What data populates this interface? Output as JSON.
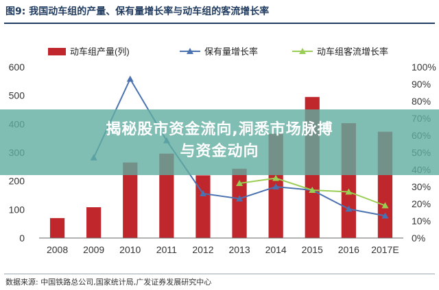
{
  "figure": {
    "title": "图9:  我国动车组的产量、保有量增长率与动车组的客流增长率",
    "source": "数据来源:  中国铁路总公司,国家统计局,广发证券发展研究中心"
  },
  "banner": {
    "line1": "揭秘股市资金流向,洞悉市场脉搏",
    "line2": "与资金动向"
  },
  "chart_data": {
    "type": "bar",
    "categories": [
      "2008",
      "2009",
      "2010",
      "2011",
      "2012",
      "2013",
      "2014",
      "2015",
      "2016",
      "2017E"
    ],
    "series": [
      {
        "name": "动车组产量(列)",
        "type": "bar",
        "axis": "left",
        "color": "#c0272d",
        "values": [
          70,
          108,
          265,
          296,
          220,
          243,
          366,
          495,
          403,
          373
        ]
      },
      {
        "name": "保有量增长率",
        "type": "line",
        "axis": "right",
        "color": "#4a72b0",
        "marker": "triangle",
        "values": [
          null,
          47,
          93,
          57,
          26,
          23,
          30,
          28,
          17,
          13
        ]
      },
      {
        "name": "动车组客流增长率",
        "type": "line",
        "axis": "right",
        "color": "#9acd54",
        "marker": "triangle",
        "values": [
          null,
          null,
          null,
          null,
          null,
          32,
          35,
          28,
          27,
          19
        ]
      }
    ],
    "y_left": {
      "min": 0,
      "max": 600,
      "ticks": [
        "0",
        "100",
        "200",
        "300",
        "400",
        "500",
        "600"
      ]
    },
    "y_right": {
      "min": 0,
      "max": 100,
      "ticks": [
        "0%",
        "10%",
        "20%",
        "30%",
        "40%",
        "50%",
        "60%",
        "70%",
        "80%",
        "90%",
        "100%"
      ]
    },
    "grid": false,
    "legend": "top-center"
  }
}
